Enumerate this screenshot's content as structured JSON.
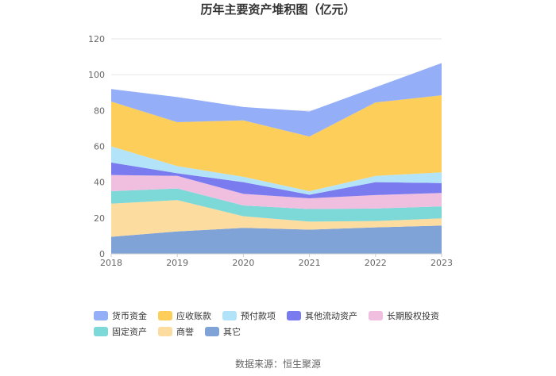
{
  "chart_data": {
    "type": "area",
    "stacked": true,
    "title": "历年主要资产堆积图（亿元）",
    "x": [
      "2018",
      "2019",
      "2020",
      "2021",
      "2022",
      "2023"
    ],
    "ylim": [
      0,
      120
    ],
    "yticks": [
      0,
      20,
      40,
      60,
      80,
      100,
      120
    ],
    "grid": true,
    "legend_position": "bottom",
    "series": [
      {
        "name": "其它",
        "color": "#7fa3d7",
        "values": [
          9.5,
          12.5,
          14.5,
          13.5,
          14.8,
          15.8
        ]
      },
      {
        "name": "商誉",
        "color": "#fddca0",
        "values": [
          18.5,
          17.5,
          6.5,
          4.5,
          3.5,
          4.0
        ]
      },
      {
        "name": "固定资产",
        "color": "#7dd8d8",
        "values": [
          7.0,
          6.5,
          6.0,
          7.0,
          7.0,
          6.7
        ]
      },
      {
        "name": "长期股权投资",
        "color": "#f0bfe0",
        "values": [
          9.0,
          7.0,
          6.5,
          6.0,
          7.5,
          7.5
        ]
      },
      {
        "name": "其他流动资产",
        "color": "#7b7bf0",
        "values": [
          7.0,
          1.5,
          6.5,
          2.0,
          7.2,
          5.5
        ]
      },
      {
        "name": "预付款项",
        "color": "#b3e3f8",
        "values": [
          9.0,
          4.0,
          3.0,
          2.0,
          3.5,
          6.0
        ]
      },
      {
        "name": "应收账款",
        "color": "#fece5a",
        "values": [
          25.0,
          24.5,
          31.5,
          30.5,
          41.0,
          43.0
        ]
      },
      {
        "name": "货币资金",
        "color": "#94aef8",
        "values": [
          7.0,
          14.0,
          7.5,
          14.0,
          8.5,
          18.0
        ]
      }
    ],
    "legend_order": [
      "货币资金",
      "应收账款",
      "预付款项",
      "其他流动资产",
      "长期股权投资",
      "固定资产",
      "商誉",
      "其它"
    ]
  },
  "source": "数据来源：恒生聚源"
}
